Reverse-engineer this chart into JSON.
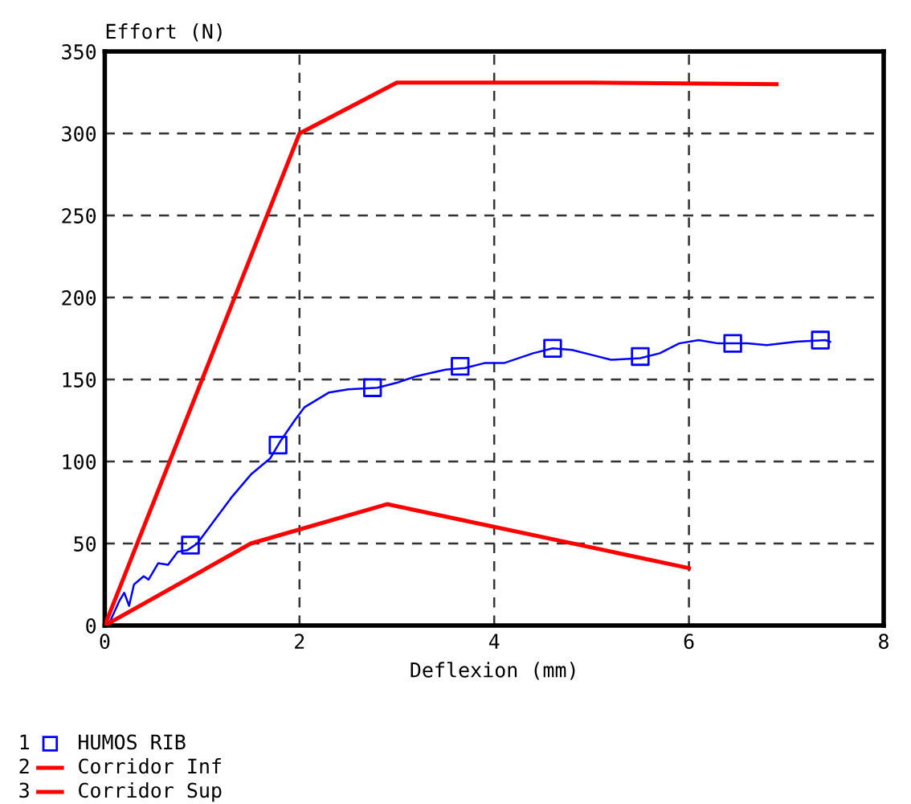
{
  "chart_data": {
    "type": "line",
    "xlabel": "Deflexion (mm)",
    "ylabel": "Effort (N)",
    "xlim": [
      0,
      8
    ],
    "ylim": [
      0,
      350
    ],
    "xticks": [
      0,
      2,
      4,
      6,
      8
    ],
    "yticks": [
      0,
      50,
      100,
      150,
      200,
      250,
      300,
      350
    ],
    "grid": true,
    "line_style": "solid",
    "legend": "bottom left",
    "annotations": [
      "1",
      "2",
      "3"
    ],
    "series": [
      {
        "color": "#0000ff",
        "x": [
          0,
          0.05,
          0.15,
          0.2,
          0.25,
          0.3,
          0.4,
          0.45,
          0.55,
          0.65,
          0.75,
          0.85,
          0.95,
          1.1,
          1.3,
          1.5,
          1.7,
          1.8,
          1.95,
          2.05,
          2.3,
          2.5,
          2.8,
          3.0,
          3.2,
          3.5,
          3.7,
          3.9,
          4.1,
          4.4,
          4.6,
          4.8,
          5.0,
          5.2,
          5.5,
          5.7,
          5.9,
          6.1,
          6.3,
          6.6,
          6.8,
          7.1,
          7.4,
          7.45
        ],
        "values": [
          0,
          2,
          15,
          20,
          12,
          25,
          30,
          28,
          38,
          37,
          45,
          46,
          50,
          62,
          78,
          92,
          102,
          112,
          125,
          133,
          142,
          144,
          145,
          148,
          152,
          156,
          157,
          160,
          160,
          166,
          169,
          168,
          165,
          162,
          163,
          166,
          172,
          174,
          172,
          172,
          171,
          173,
          174,
          173
        ]
      },
      {
        "name": "HUMOS RIB",
        "type": "scatter",
        "color": "#0000ff",
        "marker": "square",
        "x": [
          0.88,
          1.78,
          2.75,
          3.65,
          4.6,
          5.5,
          6.45,
          7.35
        ],
        "values": [
          49,
          110,
          145,
          158,
          169,
          164,
          172,
          174
        ]
      },
      {
        "name": "Corridor Inf",
        "color": "#ff0000",
        "x": [
          0,
          1.5,
          2.9,
          6
        ],
        "values": [
          0,
          50,
          74,
          35
        ]
      },
      {
        "name": "Corridor Sup",
        "color": "#ff0000",
        "x": [
          0,
          2,
          3,
          5,
          6.9
        ],
        "values": [
          0,
          300,
          331,
          331,
          330
        ]
      }
    ]
  }
}
